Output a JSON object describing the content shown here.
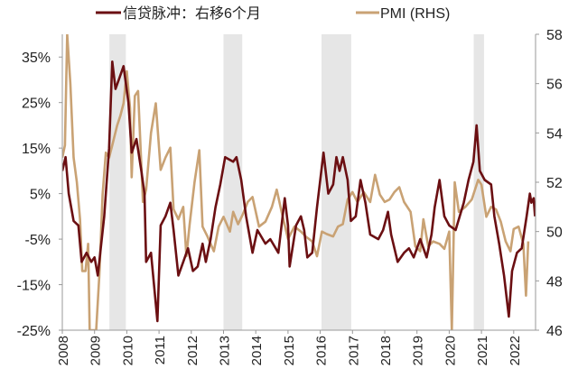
{
  "chart_data": {
    "type": "line",
    "title": "",
    "legend": {
      "placement": "top",
      "entries": [
        "信贷脉冲：右移6个月",
        "PMI (RHS)"
      ]
    },
    "colors": {
      "credit": "#6b0f12",
      "pmi": "#c9a274",
      "shade": "#e6e6e6"
    },
    "xlim": [
      2008.0,
      2022.66
    ],
    "x_ticks": [
      "2008",
      "2009",
      "2010",
      "2011",
      "2012",
      "2013",
      "2014",
      "2015",
      "2016",
      "2017",
      "2018",
      "2019",
      "2020",
      "2021",
      "2022"
    ],
    "y_left": {
      "label": "",
      "ylim": [
        -25,
        40
      ],
      "ticks": [
        35,
        25,
        15,
        5,
        -5,
        -15,
        -25
      ],
      "tick_labels": [
        "35%",
        "25%",
        "15%",
        "5%",
        "-5%",
        "-15%",
        "-25%"
      ]
    },
    "y_right": {
      "label": "RHS",
      "ylim": [
        46,
        58
      ],
      "ticks": [
        58,
        56,
        54,
        52,
        50,
        48,
        46
      ],
      "tick_labels": [
        "58",
        "56",
        "54",
        "52",
        "50",
        "48",
        "46"
      ]
    },
    "shaded_periods": [
      [
        2009.46,
        2009.97
      ],
      [
        2013.0,
        2013.58
      ],
      [
        2016.04,
        2016.96
      ],
      [
        2020.76,
        2021.08
      ]
    ],
    "series": [
      {
        "name": "信贷脉冲：右移6个月",
        "axis": "left",
        "x": [
          2008.0,
          2008.1,
          2008.2,
          2008.35,
          2008.5,
          2008.6,
          2008.75,
          2008.9,
          2009.0,
          2009.1,
          2009.3,
          2009.45,
          2009.55,
          2009.65,
          2009.75,
          2009.9,
          2010.05,
          2010.15,
          2010.3,
          2010.45,
          2010.55,
          2010.6,
          2010.75,
          2010.95,
          2011.05,
          2011.2,
          2011.35,
          2011.45,
          2011.6,
          2011.75,
          2011.9,
          2012.05,
          2012.2,
          2012.35,
          2012.45,
          2012.6,
          2012.75,
          2012.9,
          2013.05,
          2013.3,
          2013.4,
          2013.55,
          2013.7,
          2013.9,
          2014.05,
          2014.3,
          2014.45,
          2014.7,
          2014.9,
          2015.0,
          2015.05,
          2015.25,
          2015.4,
          2015.5,
          2015.6,
          2015.75,
          2015.9,
          2016.0,
          2016.1,
          2016.25,
          2016.4,
          2016.5,
          2016.6,
          2016.7,
          2016.85,
          2016.95,
          2017.1,
          2017.25,
          2017.4,
          2017.55,
          2017.8,
          2017.95,
          2018.1,
          2018.2,
          2018.4,
          2018.6,
          2018.75,
          2018.9,
          2019.1,
          2019.3,
          2019.45,
          2019.55,
          2019.7,
          2019.85,
          2020.0,
          2020.2,
          2020.45,
          2020.6,
          2020.75,
          2020.85,
          2020.95,
          2021.1,
          2021.3,
          2021.4,
          2021.55,
          2021.7,
          2021.85,
          2021.95,
          2022.1,
          2022.25,
          2022.4,
          2022.5,
          2022.55,
          2022.62,
          2022.66
        ],
        "values": [
          10,
          13,
          5,
          -1,
          -2,
          -10,
          -8,
          -10,
          -9,
          -13,
          0,
          15,
          34,
          28,
          30,
          33,
          25,
          14,
          17,
          10,
          5,
          -10,
          -8,
          -23,
          -2,
          0,
          3,
          -3,
          -13,
          -10,
          -7,
          -12,
          -11,
          -6,
          -10,
          -5,
          2,
          7,
          13,
          12,
          13,
          8,
          0,
          -8,
          -3,
          -6,
          -5,
          -8,
          4,
          -2,
          -11,
          -2,
          0,
          -3,
          -9,
          -8,
          2,
          8,
          14,
          5,
          7,
          13,
          10,
          13,
          8,
          -1,
          0,
          8,
          3,
          -4,
          -5,
          -3,
          1,
          -4,
          -10,
          -8,
          -7,
          -9,
          -5,
          -9,
          -4,
          2,
          8,
          0,
          -2,
          -3,
          3,
          8,
          12,
          20,
          10,
          8,
          7,
          0,
          -6,
          -13,
          -22,
          -12,
          -8,
          -7,
          0,
          5,
          3,
          4,
          0
        ]
      },
      {
        "name": "PMI (RHS)",
        "axis": "right",
        "x": [
          2008.0,
          2008.08,
          2008.15,
          2008.25,
          2008.35,
          2008.45,
          2008.55,
          2008.62,
          2008.72,
          2008.8,
          2008.85,
          2008.95,
          2009.05,
          2009.15,
          2009.25,
          2009.35,
          2009.45,
          2009.55,
          2009.7,
          2009.8,
          2009.9,
          2010.0,
          2010.1,
          2010.15,
          2010.25,
          2010.35,
          2010.5,
          2010.6,
          2010.75,
          2010.9,
          2011.05,
          2011.2,
          2011.35,
          2011.45,
          2011.6,
          2011.75,
          2011.85,
          2011.95,
          2012.1,
          2012.25,
          2012.35,
          2012.5,
          2012.7,
          2012.85,
          2013.0,
          2013.2,
          2013.3,
          2013.45,
          2013.6,
          2013.75,
          2013.9,
          2014.1,
          2014.3,
          2014.5,
          2014.65,
          2014.8,
          2015.0,
          2015.2,
          2015.4,
          2015.55,
          2015.75,
          2015.9,
          2016.05,
          2016.2,
          2016.4,
          2016.55,
          2016.7,
          2016.85,
          2017.0,
          2017.15,
          2017.35,
          2017.55,
          2017.7,
          2017.85,
          2018.0,
          2018.15,
          2018.3,
          2018.45,
          2018.6,
          2018.8,
          2018.95,
          2019.1,
          2019.2,
          2019.35,
          2019.5,
          2019.7,
          2019.85,
          2020.0,
          2020.08,
          2020.17,
          2020.3,
          2020.5,
          2020.7,
          2020.9,
          2021.0,
          2021.15,
          2021.3,
          2021.45,
          2021.6,
          2021.75,
          2021.9,
          2022.0,
          2022.15,
          2022.3,
          2022.38,
          2022.45
        ],
        "values": [
          53.0,
          53.5,
          58.5,
          56,
          53,
          52,
          50.5,
          48.4,
          48.4,
          49.5,
          45.5,
          45,
          45.5,
          48.3,
          51.5,
          53.2,
          53.0,
          53.5,
          54.3,
          54.7,
          55.2,
          56.5,
          55.0,
          52.2,
          55.5,
          55.7,
          51.2,
          51.7,
          54.0,
          55.2,
          52.5,
          53.0,
          53.4,
          50.9,
          50.5,
          51.0,
          49.0,
          50.3,
          52,
          53.3,
          50.2,
          49.8,
          49.2,
          50.2,
          50.6,
          50.0,
          50.8,
          50.3,
          50.7,
          51.2,
          51.4,
          50.2,
          50.4,
          51.0,
          51.7,
          50.8,
          49.7,
          50.2,
          50.0,
          49.8,
          49.6,
          49.0,
          50.0,
          49.9,
          49.8,
          50.2,
          50.3,
          51.3,
          51.6,
          51.2,
          51.6,
          51.2,
          52.3,
          51.5,
          51.2,
          51.3,
          51.6,
          51.8,
          51.2,
          50.8,
          49.4,
          49.2,
          50.5,
          49.4,
          49.6,
          49.5,
          49.3,
          50.0,
          35.7,
          52.0,
          50.8,
          51.0,
          51.3,
          52.1,
          51.9,
          50.6,
          51.0,
          50.9,
          50.4,
          49.6,
          49.2,
          50.1,
          50.2,
          49.5,
          47.4,
          49.6
        ]
      }
    ]
  }
}
